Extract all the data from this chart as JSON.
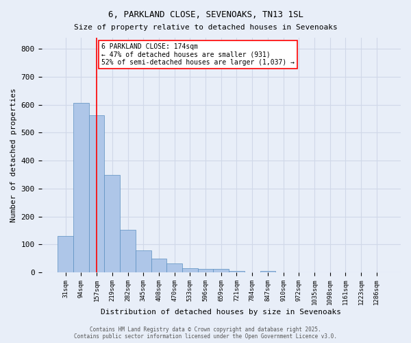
{
  "title1": "6, PARKLAND CLOSE, SEVENOAKS, TN13 1SL",
  "title2": "Size of property relative to detached houses in Sevenoaks",
  "xlabel": "Distribution of detached houses by size in Sevenoaks",
  "ylabel": "Number of detached properties",
  "bar_values": [
    130,
    607,
    562,
    350,
    152,
    80,
    49,
    32,
    14,
    12,
    12,
    4,
    0,
    5,
    0,
    0,
    0,
    0,
    0,
    0,
    0
  ],
  "bar_labels": [
    "31sqm",
    "94sqm",
    "157sqm",
    "219sqm",
    "282sqm",
    "345sqm",
    "408sqm",
    "470sqm",
    "533sqm",
    "596sqm",
    "659sqm",
    "721sqm",
    "784sqm",
    "847sqm",
    "910sqm",
    "972sqm",
    "1035sqm",
    "1098sqm",
    "1161sqm",
    "1223sqm",
    "1286sqm"
  ],
  "bar_color": "#aec6e8",
  "bar_edge_color": "#5a8fc0",
  "grid_color": "#d0d8e8",
  "background_color": "#e8eef8",
  "red_line_x": 2,
  "annotation_text": "6 PARKLAND CLOSE: 174sqm\n← 47% of detached houses are smaller (931)\n52% of semi-detached houses are larger (1,037) →",
  "annotation_box_color": "white",
  "annotation_box_edge_color": "red",
  "footer_text": "Contains HM Land Registry data © Crown copyright and database right 2025.\nContains public sector information licensed under the Open Government Licence v3.0.",
  "ylim": [
    0,
    840
  ],
  "yticks": [
    0,
    100,
    200,
    300,
    400,
    500,
    600,
    700,
    800
  ]
}
